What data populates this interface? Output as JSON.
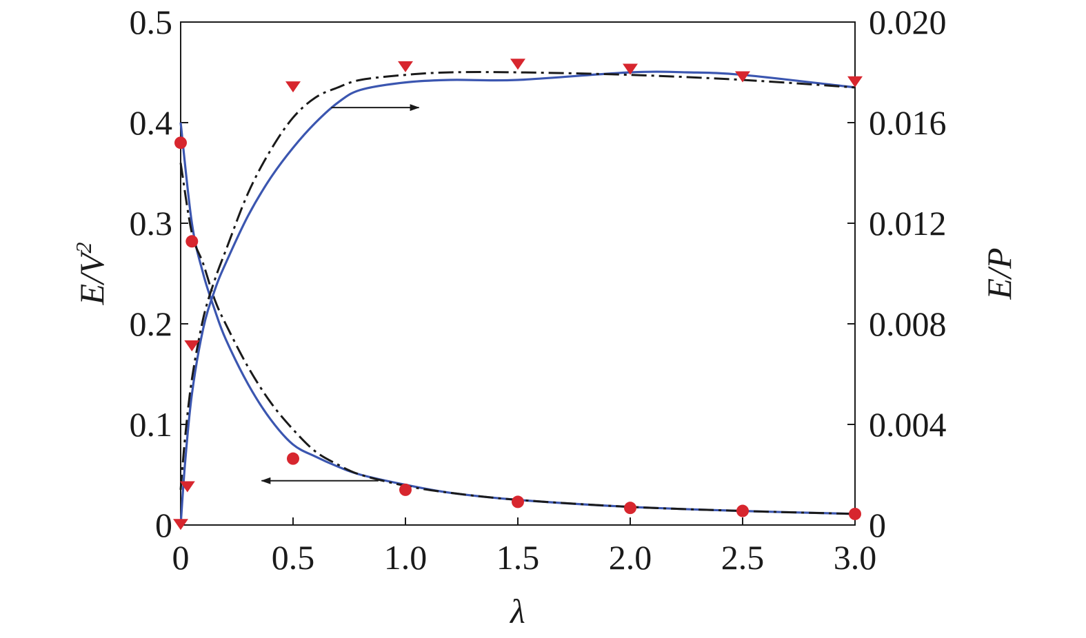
{
  "chart_data": {
    "type": "line",
    "title": "",
    "xlabel": "λ",
    "ylabel_left": {
      "main": "E/V",
      "sup": "2"
    },
    "ylabel_right": "E/P",
    "xlim": [
      0,
      3.0
    ],
    "ylim_left": [
      0,
      0.5
    ],
    "ylim_right": [
      0,
      0.02
    ],
    "grid": false,
    "x_ticks": [
      0,
      0.5,
      1.0,
      1.5,
      2.0,
      2.5,
      3.0
    ],
    "x_tick_labels": [
      "0",
      "0.5",
      "1.0",
      "1.5",
      "2.0",
      "2.5",
      "3.0"
    ],
    "y_left_ticks": [
      0,
      0.1,
      0.2,
      0.3,
      0.4,
      0.5
    ],
    "y_left_tick_labels": [
      "0",
      "0.1",
      "0.2",
      "0.3",
      "0.4",
      "0.5"
    ],
    "y_right_ticks": [
      0,
      0.004,
      0.008,
      0.012,
      0.016,
      0.02
    ],
    "y_right_tick_labels": [
      "0",
      "0.004",
      "0.008",
      "0.012",
      "0.016",
      "0.020"
    ],
    "colors": {
      "blue": "#3b56b0",
      "black": "#1a1a1a",
      "red": "#d7262e"
    },
    "series": [
      {
        "axis": "left",
        "style": "solid",
        "color": "#3b56b0",
        "x": [
          0.0,
          0.05,
          0.1,
          0.15,
          0.2,
          0.3,
          0.4,
          0.5,
          0.6,
          0.7,
          0.8,
          1.0,
          1.2,
          1.5,
          2.0,
          2.5,
          3.0
        ],
        "y": [
          0.4,
          0.3,
          0.25,
          0.215,
          0.185,
          0.14,
          0.105,
          0.08,
          0.068,
          0.058,
          0.05,
          0.04,
          0.032,
          0.025,
          0.018,
          0.014,
          0.011
        ]
      },
      {
        "axis": "left",
        "style": "dashdot",
        "color": "#1a1a1a",
        "x": [
          0.0,
          0.05,
          0.1,
          0.15,
          0.2,
          0.3,
          0.4,
          0.5,
          0.6,
          0.7,
          0.8,
          1.0,
          1.2,
          1.5,
          2.0,
          2.5,
          3.0
        ],
        "y": [
          0.36,
          0.29,
          0.26,
          0.225,
          0.2,
          0.157,
          0.122,
          0.095,
          0.073,
          0.06,
          0.05,
          0.039,
          0.032,
          0.025,
          0.018,
          0.014,
          0.011
        ]
      },
      {
        "axis": "right",
        "style": "solid",
        "color": "#3b56b0",
        "x": [
          0.0,
          0.02,
          0.05,
          0.1,
          0.15,
          0.2,
          0.3,
          0.4,
          0.5,
          0.6,
          0.7,
          0.8,
          1.0,
          1.2,
          1.5,
          2.0,
          2.25,
          2.5,
          3.0
        ],
        "y": [
          0.0,
          0.0025,
          0.0052,
          0.0078,
          0.0093,
          0.0104,
          0.0123,
          0.0138,
          0.015,
          0.016,
          0.0168,
          0.0173,
          0.0176,
          0.0177,
          0.0177,
          0.018,
          0.018,
          0.0179,
          0.0174
        ]
      },
      {
        "axis": "right",
        "style": "dashdot",
        "color": "#1a1a1a",
        "x": [
          0.0,
          0.02,
          0.05,
          0.1,
          0.15,
          0.2,
          0.3,
          0.4,
          0.5,
          0.6,
          0.7,
          0.8,
          1.0,
          1.2,
          1.5,
          2.0,
          2.5,
          3.0
        ],
        "y": [
          0.0014,
          0.0035,
          0.0058,
          0.0082,
          0.0097,
          0.0109,
          0.0132,
          0.0149,
          0.0162,
          0.017,
          0.0174,
          0.0177,
          0.0179,
          0.018,
          0.018,
          0.0179,
          0.0177,
          0.0174
        ]
      },
      {
        "axis": "left",
        "style": "marker-circle",
        "color": "#d7262e",
        "x": [
          0.0,
          0.05,
          0.5,
          1.0,
          1.5,
          2.0,
          2.5,
          3.0
        ],
        "y": [
          0.38,
          0.282,
          0.066,
          0.035,
          0.023,
          0.017,
          0.014,
          0.011
        ]
      },
      {
        "axis": "right",
        "style": "marker-triangle",
        "color": "#d7262e",
        "x": [
          0.0,
          0.03,
          0.05,
          0.5,
          1.0,
          1.5,
          2.0,
          2.5,
          3.0
        ],
        "y": [
          0.0,
          0.0015,
          0.0071,
          0.0174,
          0.0182,
          0.0183,
          0.0181,
          0.0178,
          0.0176
        ]
      }
    ],
    "annotations": [
      {
        "type": "arrow",
        "direction": "right",
        "points_to_axis": "right",
        "from": [
          0.67,
          0.0166
        ],
        "to": [
          1.06,
          0.0166
        ]
      },
      {
        "type": "arrow",
        "direction": "left",
        "points_to_axis": "left",
        "from": [
          0.88,
          0.044
        ],
        "to": [
          0.36,
          0.044
        ]
      }
    ]
  }
}
